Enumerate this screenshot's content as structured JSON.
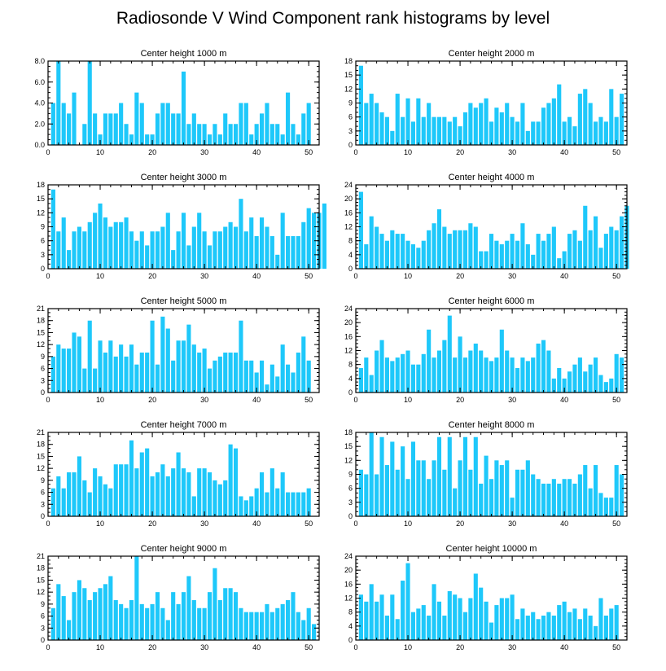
{
  "figure": {
    "title": "Radiosonde V Wind Component rank histograms by level",
    "bar_color": "#1ec8fa"
  },
  "chart_data": [
    {
      "type": "bar",
      "title": "Center height 1000 m",
      "xticks": [
        0,
        10,
        20,
        30,
        40,
        50
      ],
      "xlim": [
        0,
        52
      ],
      "ylim": [
        0,
        8
      ],
      "yticks": [
        "0.0",
        "2.0",
        "4.0",
        "6.0",
        "8.0"
      ],
      "minor_y": 0.5,
      "values": [
        4,
        8,
        4,
        3,
        5,
        0,
        2,
        8,
        3,
        1,
        3,
        3,
        3,
        4,
        2,
        1,
        5,
        4,
        1,
        1,
        3,
        4,
        4,
        3,
        3,
        7,
        2,
        3,
        2,
        2,
        1,
        2,
        1,
        3,
        2,
        2,
        4,
        4,
        1,
        2,
        3,
        4,
        2,
        2,
        1,
        5,
        2,
        1,
        3,
        4
      ]
    },
    {
      "type": "bar",
      "title": "Center height 2000 m",
      "xticks": [
        0,
        10,
        20,
        30,
        40,
        50
      ],
      "xlim": [
        0,
        52
      ],
      "ylim": [
        0,
        18
      ],
      "yticks": [
        "0",
        "3",
        "6",
        "9",
        "12",
        "15",
        "18"
      ],
      "minor_y": 1,
      "values": [
        17,
        9,
        11,
        9,
        7,
        6,
        3,
        11,
        6,
        10,
        5,
        10,
        6,
        9,
        6,
        6,
        6,
        5,
        6,
        4,
        7,
        9,
        8,
        9,
        10,
        5,
        8,
        7,
        9,
        6,
        5,
        9,
        3,
        5,
        5,
        8,
        9,
        10,
        13,
        5,
        6,
        4,
        11,
        12,
        9,
        5,
        6,
        5,
        12,
        6,
        11
      ]
    },
    {
      "type": "bar",
      "title": "Center height 3000 m",
      "xticks": [
        0,
        10,
        20,
        30,
        40,
        50
      ],
      "xlim": [
        0,
        52
      ],
      "ylim": [
        0,
        18
      ],
      "yticks": [
        "0",
        "3",
        "6",
        "9",
        "12",
        "15",
        "18"
      ],
      "minor_y": 1,
      "values": [
        17,
        8,
        11,
        4,
        8,
        9,
        8,
        10,
        12,
        14,
        11,
        9,
        10,
        10,
        11,
        8,
        6,
        8,
        5,
        8,
        8,
        9,
        12,
        4,
        8,
        12,
        5,
        9,
        12,
        8,
        5,
        8,
        8,
        9,
        10,
        9,
        15,
        8,
        11,
        7,
        11,
        9,
        7,
        3,
        12,
        7,
        7,
        7,
        10,
        13,
        12,
        12,
        14
      ]
    },
    {
      "type": "bar",
      "title": "Center height 4000 m",
      "xticks": [
        0,
        10,
        20,
        30,
        40,
        50
      ],
      "xlim": [
        0,
        52
      ],
      "ylim": [
        0,
        24
      ],
      "yticks": [
        "0",
        "4",
        "8",
        "12",
        "16",
        "20",
        "24"
      ],
      "minor_y": 1,
      "values": [
        22,
        7,
        15,
        12,
        10,
        8,
        11,
        10,
        10,
        8,
        7,
        6,
        8,
        11,
        13,
        17,
        12,
        10,
        11,
        11,
        11,
        13,
        12,
        5,
        5,
        10,
        8,
        7,
        8,
        10,
        8,
        13,
        7,
        4,
        10,
        8,
        10,
        12,
        3,
        5,
        10,
        11,
        8,
        18,
        11,
        15,
        6,
        10,
        12,
        11,
        15,
        18
      ]
    },
    {
      "type": "bar",
      "title": "Center height 5000 m",
      "xticks": [
        0,
        10,
        20,
        30,
        40,
        50
      ],
      "xlim": [
        0,
        52
      ],
      "ylim": [
        0,
        21
      ],
      "yticks": [
        "0",
        "3",
        "6",
        "9",
        "12",
        "15",
        "18",
        "21"
      ],
      "minor_y": 1,
      "values": [
        9,
        12,
        11,
        11,
        15,
        14,
        6,
        18,
        6,
        13,
        10,
        13,
        9,
        12,
        9,
        12,
        7,
        10,
        10,
        18,
        7,
        19,
        16,
        8,
        13,
        13,
        17,
        12,
        10,
        11,
        6,
        8,
        9,
        10,
        10,
        10,
        18,
        8,
        8,
        5,
        8,
        2,
        7,
        4,
        12,
        7,
        5,
        10,
        14,
        8
      ]
    },
    {
      "type": "bar",
      "title": "Center height 6000 m",
      "xticks": [
        0,
        10,
        20,
        30,
        40,
        50
      ],
      "xlim": [
        0,
        52
      ],
      "ylim": [
        0,
        24
      ],
      "yticks": [
        "0",
        "4",
        "8",
        "12",
        "16",
        "20",
        "24"
      ],
      "minor_y": 1,
      "values": [
        7,
        10,
        5,
        12,
        15,
        10,
        9,
        10,
        11,
        12,
        8,
        8,
        11,
        18,
        10,
        12,
        15,
        22,
        10,
        16,
        10,
        12,
        14,
        12,
        10,
        9,
        10,
        18,
        12,
        10,
        7,
        10,
        9,
        10,
        14,
        15,
        12,
        4,
        7,
        4,
        6,
        8,
        10,
        6,
        8,
        10,
        5,
        3,
        4,
        11,
        10
      ]
    },
    {
      "type": "bar",
      "title": "Center height 7000 m",
      "xticks": [
        0,
        10,
        20,
        30,
        40,
        50
      ],
      "xlim": [
        0,
        52
      ],
      "ylim": [
        0,
        21
      ],
      "yticks": [
        "0",
        "3",
        "6",
        "9",
        "12",
        "15",
        "18",
        "21"
      ],
      "minor_y": 1,
      "values": [
        7,
        10,
        7,
        11,
        11,
        15,
        9,
        6,
        12,
        10,
        8,
        7,
        13,
        13,
        13,
        19,
        12,
        16,
        17,
        10,
        11,
        13,
        10,
        12,
        16,
        12,
        11,
        5,
        12,
        12,
        11,
        9,
        8,
        9,
        18,
        17,
        5,
        4,
        5,
        7,
        11,
        6,
        12,
        7,
        11,
        6,
        6,
        6,
        6,
        7
      ]
    },
    {
      "type": "bar",
      "title": "Center height 8000 m",
      "xticks": [
        0,
        10,
        20,
        30,
        40,
        50
      ],
      "xlim": [
        0,
        52
      ],
      "ylim": [
        0,
        18
      ],
      "yticks": [
        "0",
        "3",
        "6",
        "9",
        "12",
        "15",
        "18"
      ],
      "minor_y": 1,
      "values": [
        10,
        9,
        18,
        9,
        17,
        11,
        16,
        10,
        15,
        8,
        16,
        12,
        12,
        8,
        12,
        17,
        10,
        17,
        6,
        12,
        17,
        10,
        17,
        7,
        13,
        8,
        12,
        11,
        12,
        4,
        10,
        10,
        12,
        9,
        8,
        7,
        7,
        8,
        7,
        8,
        8,
        7,
        9,
        11,
        6,
        11,
        5,
        4,
        4,
        11,
        9
      ]
    },
    {
      "type": "bar",
      "title": "Center height 9000 m",
      "xticks": [
        0,
        10,
        20,
        30,
        40,
        50
      ],
      "xlim": [
        0,
        52
      ],
      "ylim": [
        0,
        21
      ],
      "yticks": [
        "0",
        "3",
        "6",
        "9",
        "12",
        "15",
        "18",
        "21"
      ],
      "minor_y": 1,
      "values": [
        8,
        14,
        11,
        5,
        12,
        15,
        13,
        10,
        12,
        13,
        14,
        16,
        10,
        9,
        8,
        10,
        21,
        9,
        8,
        9,
        12,
        8,
        5,
        12,
        9,
        12,
        16,
        10,
        8,
        8,
        12,
        18,
        10,
        13,
        13,
        12,
        8,
        7,
        7,
        7,
        7,
        9,
        7,
        8,
        9,
        10,
        12,
        7,
        5,
        8,
        4
      ]
    },
    {
      "type": "bar",
      "title": "Center height 10000 m",
      "xticks": [
        0,
        10,
        20,
        30,
        40,
        50
      ],
      "xlim": [
        0,
        52
      ],
      "ylim": [
        0,
        24
      ],
      "yticks": [
        "0",
        "4",
        "8",
        "12",
        "16",
        "20",
        "24"
      ],
      "minor_y": 1,
      "values": [
        13,
        11,
        16,
        11,
        13,
        7,
        13,
        6,
        17,
        22,
        8,
        9,
        10,
        7,
        16,
        11,
        7,
        14,
        13,
        12,
        8,
        12,
        19,
        15,
        11,
        5,
        10,
        12,
        12,
        13,
        6,
        9,
        7,
        8,
        6,
        7,
        8,
        7,
        10,
        11,
        8,
        9,
        6,
        9,
        7,
        4,
        12,
        7,
        9,
        10
      ]
    }
  ]
}
